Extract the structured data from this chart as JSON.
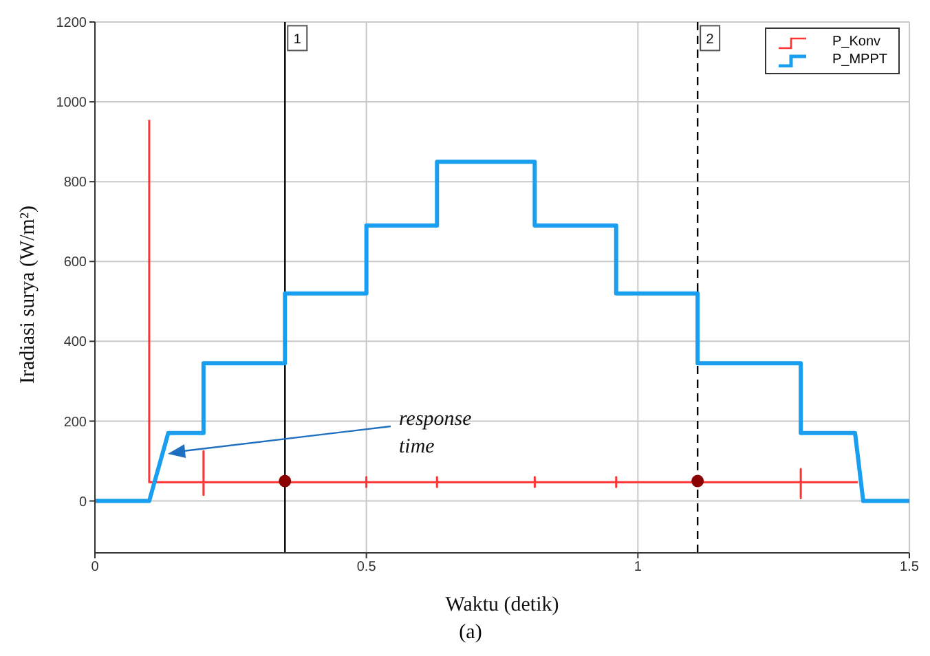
{
  "chart_data": {
    "type": "line",
    "xlabel": "Waktu (detik)",
    "ylabel": "Iradiasi surya (W/m²)",
    "xlim": [
      0,
      1.5
    ],
    "xticks": [
      0,
      0.5,
      1,
      1.5
    ],
    "ylim": [
      -130,
      1200
    ],
    "yticks": [
      0,
      200,
      400,
      600,
      800,
      1000,
      1200
    ],
    "grid": true,
    "legend": "top right",
    "line_style": "solid",
    "series": [
      {
        "name": "P_Konv",
        "color": "#ff3333",
        "marker": "none",
        "x": [
          0.1,
          0.1,
          0.2,
          0.2,
          0.2,
          0.2,
          0.35,
          0.5,
          0.5,
          0.5,
          0.5,
          0.63,
          0.63,
          0.63,
          0.63,
          0.81,
          0.81,
          0.81,
          0.81,
          0.96,
          0.96,
          0.96,
          0.96,
          1.3,
          1.3,
          1.3,
          1.3,
          1.405
        ],
        "values": [
          955,
          47,
          47,
          125,
          15,
          47,
          47,
          47,
          60,
          35,
          47,
          47,
          60,
          35,
          47,
          47,
          60,
          35,
          47,
          47,
          60,
          35,
          47,
          47,
          80,
          7,
          47,
          47
        ]
      },
      {
        "name": "P_MPPT",
        "color": "#1a9ff0",
        "marker": "none",
        "x": [
          0,
          0.1,
          0.135,
          0.2,
          0.2,
          0.35,
          0.35,
          0.5,
          0.5,
          0.63,
          0.63,
          0.81,
          0.81,
          0.96,
          0.96,
          1.11,
          1.11,
          1.3,
          1.3,
          1.4,
          1.415,
          1.5
        ],
        "values": [
          0,
          0,
          170,
          170,
          345,
          345,
          520,
          520,
          690,
          690,
          850,
          850,
          690,
          690,
          520,
          520,
          345,
          345,
          170,
          170,
          0,
          0
        ]
      },
      {
        "color": "#8b0000",
        "type": "scatter",
        "marker": "circle",
        "x": [
          0.35,
          1.11
        ],
        "values": [
          50,
          50
        ]
      }
    ],
    "ref_lines": [
      {
        "axis": "x",
        "value": 0.35,
        "color": "#000000",
        "line_style": "solid"
      },
      {
        "axis": "x",
        "value": 1.11,
        "color": "#000000",
        "line_style": "dashed"
      }
    ],
    "annotations": [
      {
        "text": "1",
        "x": 0.35,
        "y": 1170
      },
      {
        "text": "2",
        "x": 1.11,
        "y": 1170
      },
      "response time",
      "(a)"
    ]
  }
}
